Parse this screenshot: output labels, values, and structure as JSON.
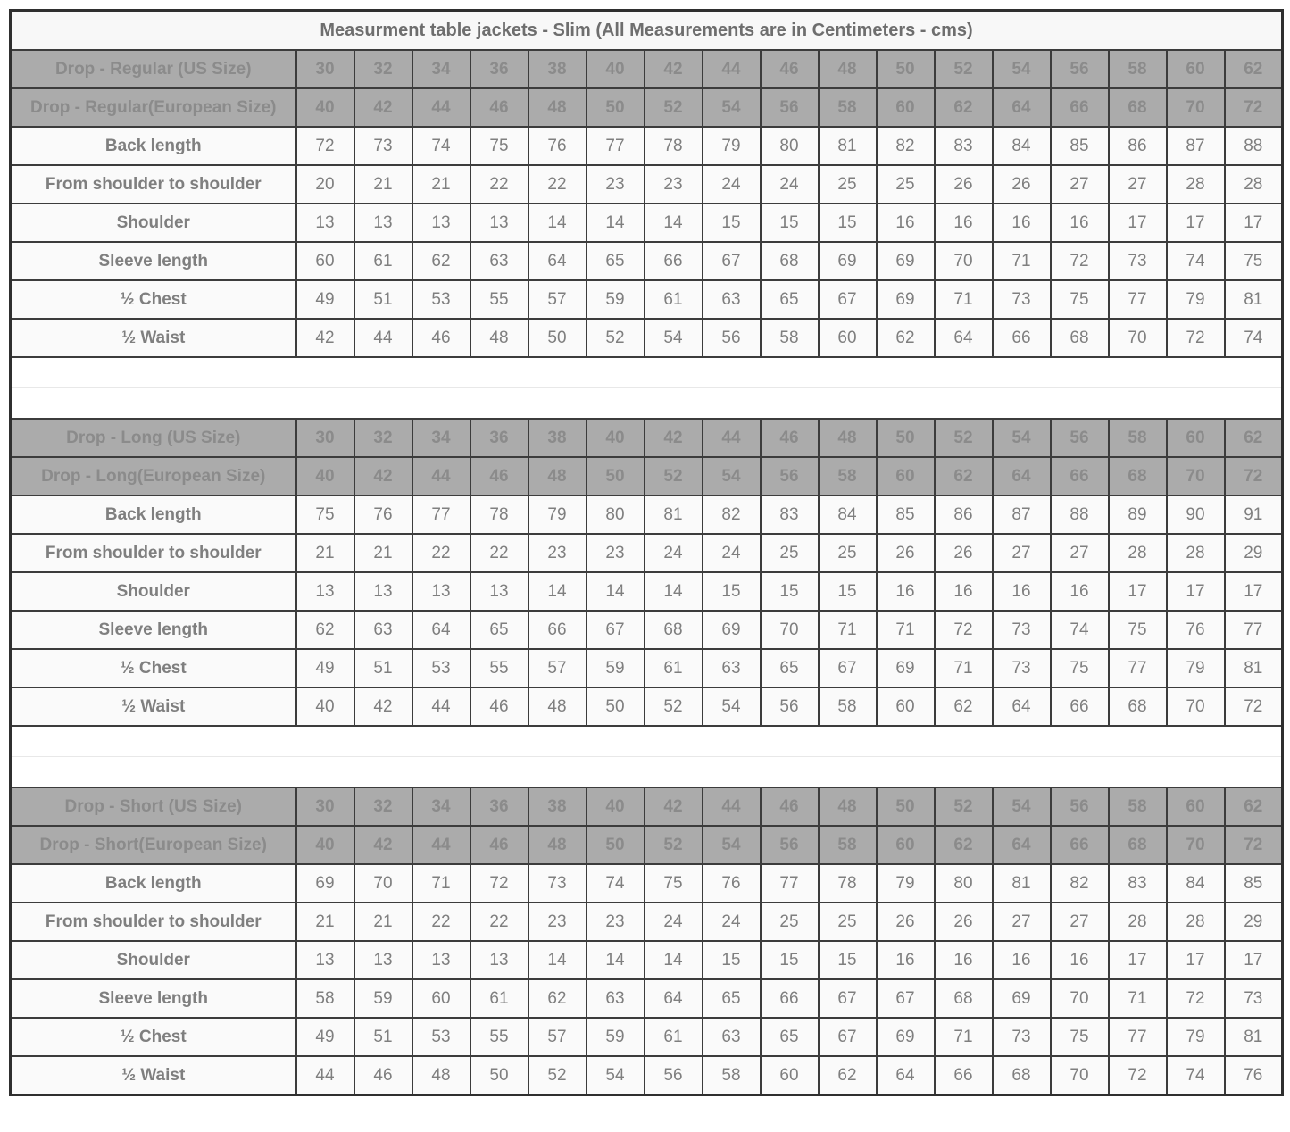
{
  "chart_data": {
    "type": "table",
    "title": "Measurment table jackets - Slim (All Measurements are in Centimeters - cms)",
    "units": "Centimeters - cms",
    "sections": [
      {
        "us_label": "Drop - Regular (US Size)",
        "eu_label": "Drop - Regular(European Size)",
        "us_sizes": [
          30,
          32,
          34,
          36,
          38,
          40,
          42,
          44,
          46,
          48,
          50,
          52,
          54,
          56,
          58,
          60,
          62
        ],
        "eu_sizes": [
          40,
          42,
          44,
          46,
          48,
          50,
          52,
          54,
          56,
          58,
          60,
          62,
          64,
          66,
          68,
          70,
          72
        ],
        "rows": [
          {
            "label": "Back length",
            "values": [
              72,
              73,
              74,
              75,
              76,
              77,
              78,
              79,
              80,
              81,
              82,
              83,
              84,
              85,
              86,
              87,
              88
            ]
          },
          {
            "label": "From shoulder to shoulder",
            "values": [
              20,
              21,
              21,
              22,
              22,
              23,
              23,
              24,
              24,
              25,
              25,
              26,
              26,
              27,
              27,
              28,
              28
            ]
          },
          {
            "label": "Shoulder",
            "values": [
              13,
              13,
              13,
              13,
              14,
              14,
              14,
              15,
              15,
              15,
              16,
              16,
              16,
              16,
              17,
              17,
              17
            ]
          },
          {
            "label": "Sleeve length",
            "values": [
              60,
              61,
              62,
              63,
              64,
              65,
              66,
              67,
              68,
              69,
              69,
              70,
              71,
              72,
              73,
              74,
              75
            ]
          },
          {
            "label": "½ Chest",
            "values": [
              49,
              51,
              53,
              55,
              57,
              59,
              61,
              63,
              65,
              67,
              69,
              71,
              73,
              75,
              77,
              79,
              81
            ]
          },
          {
            "label": "½ Waist",
            "values": [
              42,
              44,
              46,
              48,
              50,
              52,
              54,
              56,
              58,
              60,
              62,
              64,
              66,
              68,
              70,
              72,
              74
            ]
          }
        ]
      },
      {
        "us_label": "Drop - Long (US Size)",
        "eu_label": "Drop - Long(European Size)",
        "us_sizes": [
          30,
          32,
          34,
          36,
          38,
          40,
          42,
          44,
          46,
          48,
          50,
          52,
          54,
          56,
          58,
          60,
          62
        ],
        "eu_sizes": [
          40,
          42,
          44,
          46,
          48,
          50,
          52,
          54,
          56,
          58,
          60,
          62,
          64,
          66,
          68,
          70,
          72
        ],
        "rows": [
          {
            "label": "Back length",
            "values": [
              75,
              76,
              77,
              78,
              79,
              80,
              81,
              82,
              83,
              84,
              85,
              86,
              87,
              88,
              89,
              90,
              91
            ]
          },
          {
            "label": "From shoulder to shoulder",
            "values": [
              21,
              21,
              22,
              22,
              23,
              23,
              24,
              24,
              25,
              25,
              26,
              26,
              27,
              27,
              28,
              28,
              29
            ]
          },
          {
            "label": "Shoulder",
            "values": [
              13,
              13,
              13,
              13,
              14,
              14,
              14,
              15,
              15,
              15,
              16,
              16,
              16,
              16,
              17,
              17,
              17
            ]
          },
          {
            "label": "Sleeve length",
            "values": [
              62,
              63,
              64,
              65,
              66,
              67,
              68,
              69,
              70,
              71,
              71,
              72,
              73,
              74,
              75,
              76,
              77
            ]
          },
          {
            "label": "½ Chest",
            "values": [
              49,
              51,
              53,
              55,
              57,
              59,
              61,
              63,
              65,
              67,
              69,
              71,
              73,
              75,
              77,
              79,
              81
            ]
          },
          {
            "label": "½ Waist",
            "values": [
              40,
              42,
              44,
              46,
              48,
              50,
              52,
              54,
              56,
              58,
              60,
              62,
              64,
              66,
              68,
              70,
              72
            ]
          }
        ]
      },
      {
        "us_label": "Drop - Short (US Size)",
        "eu_label": "Drop - Short(European Size)",
        "us_sizes": [
          30,
          32,
          34,
          36,
          38,
          40,
          42,
          44,
          46,
          48,
          50,
          52,
          54,
          56,
          58,
          60,
          62
        ],
        "eu_sizes": [
          40,
          42,
          44,
          46,
          48,
          50,
          52,
          54,
          56,
          58,
          60,
          62,
          64,
          66,
          68,
          70,
          72
        ],
        "rows": [
          {
            "label": "Back length",
            "values": [
              69,
              70,
              71,
              72,
              73,
              74,
              75,
              76,
              77,
              78,
              79,
              80,
              81,
              82,
              83,
              84,
              85
            ]
          },
          {
            "label": "From shoulder to shoulder",
            "values": [
              21,
              21,
              22,
              22,
              23,
              23,
              24,
              24,
              25,
              25,
              26,
              26,
              27,
              27,
              28,
              28,
              29
            ]
          },
          {
            "label": "Shoulder",
            "values": [
              13,
              13,
              13,
              13,
              14,
              14,
              14,
              15,
              15,
              15,
              16,
              16,
              16,
              16,
              17,
              17,
              17
            ]
          },
          {
            "label": "Sleeve length",
            "values": [
              58,
              59,
              60,
              61,
              62,
              63,
              64,
              65,
              66,
              67,
              67,
              68,
              69,
              70,
              71,
              72,
              73
            ]
          },
          {
            "label": "½ Chest",
            "values": [
              49,
              51,
              53,
              55,
              57,
              59,
              61,
              63,
              65,
              67,
              69,
              71,
              73,
              75,
              77,
              79,
              81
            ]
          },
          {
            "label": "½ Waist",
            "values": [
              44,
              46,
              48,
              50,
              52,
              54,
              56,
              58,
              60,
              62,
              64,
              66,
              68,
              70,
              72,
              74,
              76
            ]
          }
        ]
      }
    ],
    "layout": {
      "columns_per_section": 17,
      "gap_rows_between_sections": 2
    }
  },
  "colors": {
    "header_bg": "#ababab",
    "header_text": "#8b8b8b",
    "cell_bg": "#fafafa",
    "cell_text": "#7f7f7f",
    "label_text": "#6e6e6e",
    "border": "#3c3c3c"
  }
}
